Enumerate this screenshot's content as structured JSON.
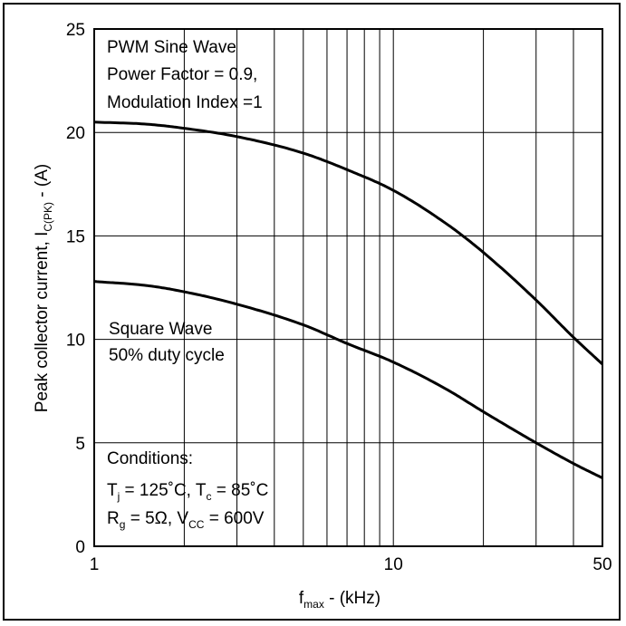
{
  "chart_data": {
    "type": "line",
    "x_scale": "log",
    "xlim": [
      1,
      50
    ],
    "ylim": [
      0,
      25
    ],
    "x_ticks": [
      "1",
      "10",
      "50"
    ],
    "y_ticks": [
      "0",
      "5",
      "10",
      "15",
      "20",
      "25"
    ],
    "xlabel": {
      "main": "f",
      "sub": "max",
      "rest": " - (kHz)"
    },
    "ylabel": {
      "main": "Peak collector current, I",
      "sub": "C(PK)",
      "rest": " - (A)"
    },
    "grid": true,
    "series": [
      {
        "label_lines": [
          "PWM Sine Wave",
          "Power Factor = 0.9,",
          "Modulation Index =1"
        ],
        "x": [
          1,
          1.5,
          2,
          3,
          5,
          7,
          10,
          15,
          20,
          30,
          40,
          50
        ],
        "y": [
          20.5,
          20.4,
          20.2,
          19.8,
          19.0,
          18.2,
          17.2,
          15.6,
          14.2,
          11.9,
          10.1,
          8.8
        ]
      },
      {
        "label_lines": [
          "Square Wave",
          "50% duty cycle"
        ],
        "x": [
          1,
          1.5,
          2,
          3,
          5,
          7,
          10,
          15,
          20,
          30,
          40,
          50
        ],
        "y": [
          12.8,
          12.6,
          12.3,
          11.7,
          10.7,
          9.8,
          8.9,
          7.6,
          6.5,
          5.0,
          4.0,
          3.3
        ]
      }
    ],
    "conditions": {
      "title": "Conditions:",
      "line1": {
        "t1": "T",
        "s1": "j",
        "v1": " = 125˚C, T",
        "s2": "c",
        "v2": " = 85˚C"
      },
      "line2": {
        "t1": "R",
        "s1": "g",
        "v1": " = 5Ω,  V",
        "s2": "CC",
        "v2": " = 600V"
      }
    }
  }
}
